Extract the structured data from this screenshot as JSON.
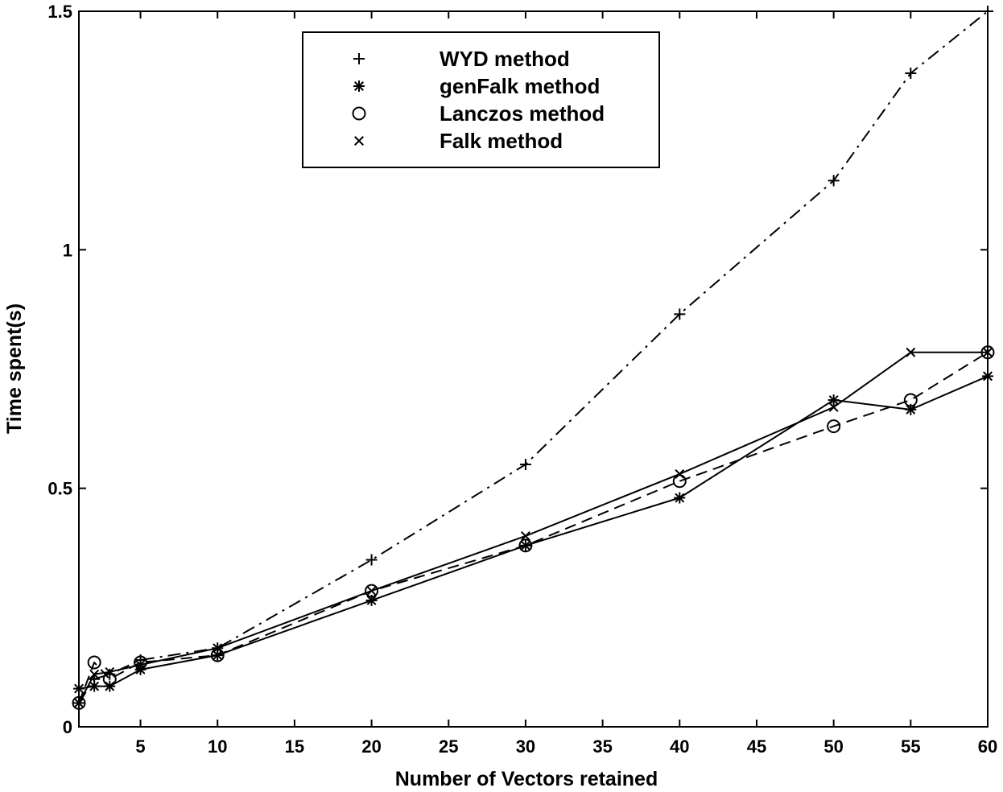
{
  "chart_data": {
    "type": "line",
    "title": "",
    "xlabel": "Number of Vectors retained",
    "ylabel": "Time spent(s)",
    "xlim": [
      1,
      60
    ],
    "ylim": [
      0,
      1.5
    ],
    "xticks": [
      5,
      10,
      15,
      20,
      25,
      30,
      35,
      40,
      45,
      50,
      55,
      60
    ],
    "yticks": [
      0,
      0.5,
      1,
      1.5
    ],
    "ytick_labels": [
      "0",
      "0.5",
      "1",
      "1.5"
    ],
    "grid": false,
    "legend_position": "top-center",
    "series": [
      {
        "name": "WYD method",
        "marker": "plus",
        "line_style": "dashdot",
        "x": [
          1,
          2,
          3,
          5,
          10,
          20,
          30,
          40,
          50,
          55,
          60
        ],
        "y": [
          0.05,
          0.1,
          0.11,
          0.14,
          0.165,
          0.35,
          0.55,
          0.865,
          1.145,
          1.37,
          1.5
        ]
      },
      {
        "name": "genFalk method",
        "marker": "asterisk",
        "line_style": "solid",
        "x": [
          1,
          2,
          3,
          5,
          10,
          20,
          30,
          40,
          50,
          55,
          60
        ],
        "y": [
          0.08,
          0.085,
          0.085,
          0.12,
          0.15,
          0.265,
          0.38,
          0.48,
          0.685,
          0.665,
          0.735
        ]
      },
      {
        "name": "Lanczos method",
        "marker": "circle",
        "line_style": "dashed",
        "x": [
          1,
          2,
          3,
          5,
          10,
          20,
          30,
          40,
          50,
          55,
          60
        ],
        "y": [
          0.05,
          0.135,
          0.1,
          0.135,
          0.15,
          0.285,
          0.38,
          0.515,
          0.63,
          0.685,
          0.785
        ]
      },
      {
        "name": "Falk method",
        "marker": "x",
        "line_style": "solid",
        "x": [
          1,
          2,
          3,
          5,
          10,
          20,
          30,
          40,
          50,
          55,
          60
        ],
        "y": [
          0.05,
          0.11,
          0.115,
          0.13,
          0.165,
          0.285,
          0.4,
          0.53,
          0.67,
          0.785,
          0.785
        ]
      }
    ]
  }
}
